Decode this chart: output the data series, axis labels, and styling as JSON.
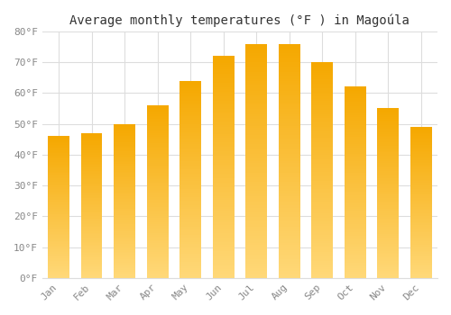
{
  "title": "Average monthly temperatures (°F ) in Magoúla",
  "months": [
    "Jan",
    "Feb",
    "Mar",
    "Apr",
    "May",
    "Jun",
    "Jul",
    "Aug",
    "Sep",
    "Oct",
    "Nov",
    "Dec"
  ],
  "values": [
    46,
    47,
    50,
    56,
    64,
    72,
    76,
    76,
    70,
    62,
    55,
    49
  ],
  "bar_color_top": "#F5A800",
  "bar_color_bottom": "#FFD878",
  "ylim": [
    0,
    80
  ],
  "yticks": [
    0,
    10,
    20,
    30,
    40,
    50,
    60,
    70,
    80
  ],
  "ytick_labels": [
    "0°F",
    "10°F",
    "20°F",
    "30°F",
    "40°F",
    "50°F",
    "60°F",
    "70°F",
    "80°F"
  ],
  "background_color": "#FFFFFF",
  "grid_color": "#DDDDDD",
  "title_fontsize": 10,
  "tick_fontsize": 8,
  "tick_color": "#888888",
  "font_family": "monospace"
}
